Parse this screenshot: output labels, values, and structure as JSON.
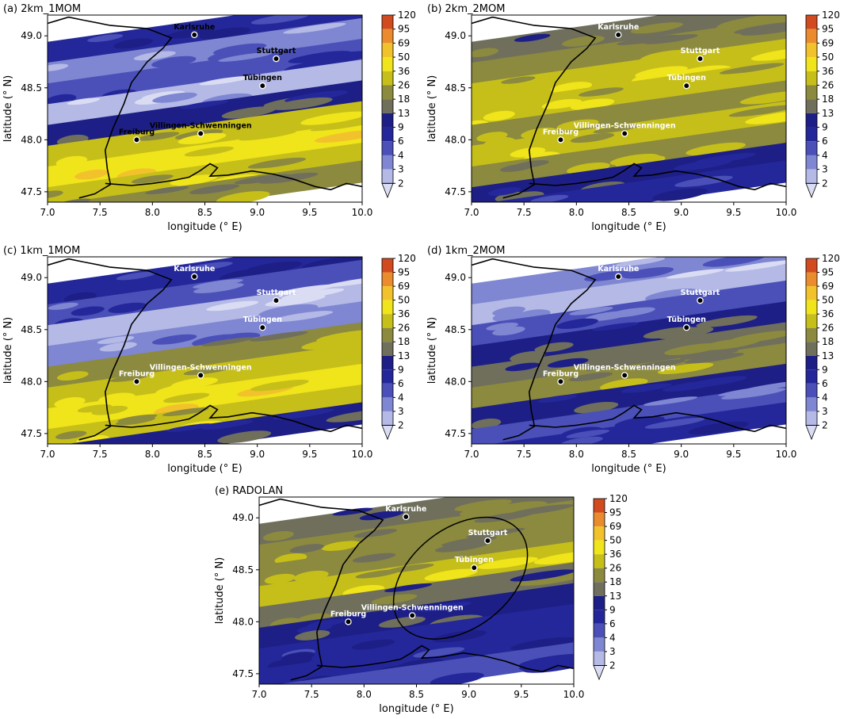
{
  "figure": {
    "colorbar_levels": [
      2,
      3,
      4,
      6,
      9,
      13,
      18,
      26,
      36,
      50,
      69,
      95,
      120
    ],
    "colorbar_colors": [
      "#d9dcf2",
      "#b4b9e6",
      "#7f86d2",
      "#4a50b8",
      "#24279a",
      "#1d1f86",
      "#6f6f5c",
      "#8c8a3e",
      "#c6bf1a",
      "#f0e41a",
      "#f2c22c",
      "#ea8c2e",
      "#d24a1f"
    ],
    "white": "#ffffff",
    "border_color": "#000000",
    "city_marker_color": "#000000"
  },
  "chart_data": [
    {
      "type": "heatmap",
      "panel": "a",
      "title": "(a) 2km_1MOM",
      "xlabel": "longitude (° E)",
      "ylabel": "latitude (° N)",
      "xlim": [
        7.0,
        10.0
      ],
      "ylim": [
        47.4,
        49.2
      ],
      "xticks": [
        "7.0",
        "7.5",
        "8.0",
        "8.5",
        "9.0",
        "9.5",
        "10.0"
      ],
      "yticks": [
        "47.5",
        "48.0",
        "48.5",
        "49.0"
      ],
      "colorbar_ticks": [
        "120",
        "95",
        "69",
        "50",
        "36",
        "26",
        "18",
        "13",
        "9",
        "6",
        "4",
        "3",
        "2"
      ],
      "cities": [
        {
          "name": "Karlsruhe",
          "lon": 8.4,
          "lat": 49.01
        },
        {
          "name": "Stuttgart",
          "lon": 9.18,
          "lat": 48.78
        },
        {
          "name": "Tübingen",
          "lon": 9.05,
          "lat": 48.52
        },
        {
          "name": "Freiburg",
          "lon": 7.85,
          "lat": 48.0
        },
        {
          "name": "Villingen-Schwenningen",
          "lon": 8.46,
          "lat": 48.06
        }
      ],
      "bands": [
        {
          "lat": 49.05,
          "level": 4
        },
        {
          "lat": 48.85,
          "level": 2
        },
        {
          "lat": 48.65,
          "level": 3
        },
        {
          "lat": 48.45,
          "level": 1
        },
        {
          "lat": 48.25,
          "level": 5
        },
        {
          "lat": 48.05,
          "level": 8
        },
        {
          "lat": 47.85,
          "level": 9
        },
        {
          "lat": 47.65,
          "level": 8
        },
        {
          "lat": 47.48,
          "level": 7
        }
      ]
    },
    {
      "type": "heatmap",
      "panel": "b",
      "title": "(b) 2km_2MOM",
      "xlabel": "longitude (° E)",
      "ylabel": "latitude (° N)",
      "xlim": [
        7.0,
        10.0
      ],
      "ylim": [
        47.4,
        49.2
      ],
      "xticks": [
        "7.0",
        "7.5",
        "8.0",
        "8.5",
        "9.0",
        "9.5",
        "10.0"
      ],
      "yticks": [
        "47.5",
        "48.0",
        "48.5",
        "49.0"
      ],
      "colorbar_ticks": [
        "120",
        "95",
        "69",
        "50",
        "36",
        "26",
        "18",
        "13",
        "9",
        "6",
        "4",
        "3",
        "2"
      ],
      "cities": [
        {
          "name": "Karlsruhe",
          "lon": 8.4,
          "lat": 49.01
        },
        {
          "name": "Stuttgart",
          "lon": 9.18,
          "lat": 48.78
        },
        {
          "name": "Tübingen",
          "lon": 9.05,
          "lat": 48.52
        },
        {
          "name": "Freiburg",
          "lon": 7.85,
          "lat": 48.0
        },
        {
          "name": "Villingen-Schwenningen",
          "lon": 8.46,
          "lat": 48.06
        }
      ],
      "bands": [
        {
          "lat": 49.05,
          "level": 6
        },
        {
          "lat": 48.85,
          "level": 7
        },
        {
          "lat": 48.65,
          "level": 8
        },
        {
          "lat": 48.45,
          "level": 8
        },
        {
          "lat": 48.25,
          "level": 7
        },
        {
          "lat": 48.05,
          "level": 8
        },
        {
          "lat": 47.85,
          "level": 7
        },
        {
          "lat": 47.65,
          "level": 5
        },
        {
          "lat": 47.48,
          "level": 4
        }
      ]
    },
    {
      "type": "heatmap",
      "panel": "c",
      "title": "(c) 1km_1MOM",
      "xlabel": "longitude (° E)",
      "ylabel": "latitude (° N)",
      "xlim": [
        7.0,
        10.0
      ],
      "ylim": [
        47.4,
        49.2
      ],
      "xticks": [
        "7.0",
        "7.5",
        "8.0",
        "8.5",
        "9.0",
        "9.5",
        "10.0"
      ],
      "yticks": [
        "47.5",
        "48.0",
        "48.5",
        "49.0"
      ],
      "colorbar_ticks": [
        "120",
        "95",
        "69",
        "50",
        "36",
        "26",
        "18",
        "13",
        "9",
        "6",
        "4",
        "3",
        "2"
      ],
      "cities": [
        {
          "name": "Karlsruhe",
          "lon": 8.4,
          "lat": 49.01
        },
        {
          "name": "Stuttgart",
          "lon": 9.18,
          "lat": 48.78
        },
        {
          "name": "Tübingen",
          "lon": 9.05,
          "lat": 48.52
        },
        {
          "name": "Freiburg",
          "lon": 7.85,
          "lat": 48.0
        },
        {
          "name": "Villingen-Schwenningen",
          "lon": 8.46,
          "lat": 48.06
        }
      ],
      "bands": [
        {
          "lat": 49.05,
          "level": 4
        },
        {
          "lat": 48.85,
          "level": 3
        },
        {
          "lat": 48.65,
          "level": 1
        },
        {
          "lat": 48.45,
          "level": 2
        },
        {
          "lat": 48.25,
          "level": 7
        },
        {
          "lat": 48.05,
          "level": 8
        },
        {
          "lat": 47.85,
          "level": 9
        },
        {
          "lat": 47.65,
          "level": 8
        },
        {
          "lat": 47.48,
          "level": 5
        }
      ]
    },
    {
      "type": "heatmap",
      "panel": "d",
      "title": "(d) 1km_2MOM",
      "xlabel": "longitude (° E)",
      "ylabel": "latitude (° N)",
      "xlim": [
        7.0,
        10.0
      ],
      "ylim": [
        47.4,
        49.2
      ],
      "xticks": [
        "7.0",
        "7.5",
        "8.0",
        "8.5",
        "9.0",
        "9.5",
        "10.0"
      ],
      "yticks": [
        "47.5",
        "48.0",
        "48.5",
        "49.0"
      ],
      "colorbar_ticks": [
        "120",
        "95",
        "69",
        "50",
        "36",
        "26",
        "18",
        "13",
        "9",
        "6",
        "4",
        "3",
        "2"
      ],
      "cities": [
        {
          "name": "Karlsruhe",
          "lon": 8.4,
          "lat": 49.01
        },
        {
          "name": "Stuttgart",
          "lon": 9.18,
          "lat": 48.78
        },
        {
          "name": "Tübingen",
          "lon": 9.05,
          "lat": 48.52
        },
        {
          "name": "Freiburg",
          "lon": 7.85,
          "lat": 48.0
        },
        {
          "name": "Villingen-Schwenningen",
          "lon": 8.46,
          "lat": 48.06
        }
      ],
      "bands": [
        {
          "lat": 49.05,
          "level": 2
        },
        {
          "lat": 48.85,
          "level": 1
        },
        {
          "lat": 48.65,
          "level": 3
        },
        {
          "lat": 48.45,
          "level": 5
        },
        {
          "lat": 48.25,
          "level": 6
        },
        {
          "lat": 48.05,
          "level": 7
        },
        {
          "lat": 47.85,
          "level": 5
        },
        {
          "lat": 47.65,
          "level": 3
        },
        {
          "lat": 47.48,
          "level": 4
        }
      ]
    },
    {
      "type": "heatmap",
      "panel": "e",
      "title": "(e) RADOLAN",
      "xlabel": "longitude (° E)",
      "ylabel": "latitude (° N)",
      "xlim": [
        7.0,
        10.0
      ],
      "ylim": [
        47.4,
        49.2
      ],
      "xticks": [
        "7.0",
        "7.5",
        "8.0",
        "8.5",
        "9.0",
        "9.5",
        "10.0"
      ],
      "yticks": [
        "47.5",
        "48.0",
        "48.5",
        "49.0"
      ],
      "colorbar_ticks": [
        "120",
        "95",
        "69",
        "50",
        "36",
        "26",
        "18",
        "13",
        "9",
        "6",
        "4",
        "3",
        "2"
      ],
      "cities": [
        {
          "name": "Karlsruhe",
          "lon": 8.4,
          "lat": 49.01
        },
        {
          "name": "Stuttgart",
          "lon": 9.18,
          "lat": 48.78
        },
        {
          "name": "Tübingen",
          "lon": 9.05,
          "lat": 48.52
        },
        {
          "name": "Freiburg",
          "lon": 7.85,
          "lat": 48.0
        },
        {
          "name": "Villingen-Schwenningen",
          "lon": 8.46,
          "lat": 48.06
        }
      ],
      "bands": [
        {
          "lat": 49.05,
          "level": 6
        },
        {
          "lat": 48.85,
          "level": 7
        },
        {
          "lat": 48.65,
          "level": 7
        },
        {
          "lat": 48.45,
          "level": 8
        },
        {
          "lat": 48.25,
          "level": 6
        },
        {
          "lat": 48.05,
          "level": 5
        },
        {
          "lat": 47.85,
          "level": 4
        },
        {
          "lat": 47.65,
          "level": 4
        },
        {
          "lat": 47.48,
          "level": 3
        }
      ],
      "ellipse": {
        "lon": 8.92,
        "lat": 48.42,
        "rlon": 0.72,
        "rlat": 0.48,
        "rotation_deg": -38
      }
    }
  ]
}
